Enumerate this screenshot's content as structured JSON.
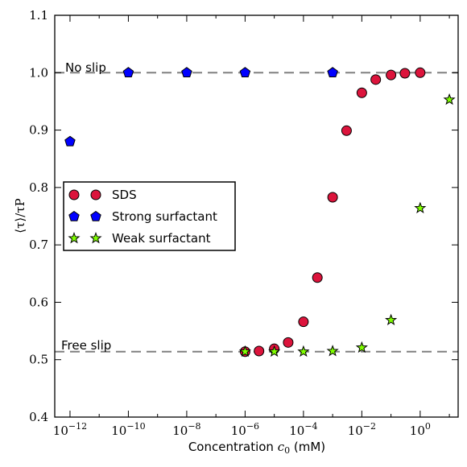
{
  "chart_data": {
    "type": "scatter",
    "xscale": "log",
    "xlim": [
      3e-13,
      20.0
    ],
    "ylim": [
      0.4,
      1.1
    ],
    "xticks": [
      1e-12,
      1e-10,
      1e-08,
      1e-06,
      0.0001,
      0.01,
      1.0
    ],
    "xtick_labels": [
      "10^-12",
      "10^-10",
      "10^-8",
      "10^-6",
      "10^-4",
      "10^-2",
      "10^0"
    ],
    "yticks": [
      0.4,
      0.5,
      0.6,
      0.7,
      0.8,
      0.9,
      1.0,
      1.1
    ],
    "ytick_labels": [
      "0.4",
      "0.5",
      "0.6",
      "0.7",
      "0.8",
      "0.9",
      "1.0",
      "1.1"
    ],
    "xlabel_prefix": "Concentration ",
    "xlabel_var": "c",
    "xlabel_sub": "0",
    "xlabel_suffix": " (mM)",
    "ylabel": "⟨τ⟩/τP",
    "grid": false,
    "legend_position": "center-left",
    "reference_lines": [
      {
        "label": "No slip",
        "y": 1.0,
        "color": "#808080"
      },
      {
        "label": "Free slip",
        "y": 0.514,
        "color": "#808080"
      }
    ],
    "series": [
      {
        "name": "SDS",
        "marker": "circle",
        "color": "#dc143c",
        "x": [
          1e-06,
          3e-06,
          1e-05,
          3e-05,
          0.0001,
          0.0003,
          0.001,
          0.003,
          0.01,
          0.03,
          0.1,
          0.3,
          1.0
        ],
        "y": [
          0.514,
          0.515,
          0.519,
          0.53,
          0.566,
          0.643,
          0.783,
          0.899,
          0.965,
          0.988,
          0.996,
          0.999,
          1.0
        ]
      },
      {
        "name": "Strong surfactant",
        "marker": "pentagon",
        "color": "#0000ff",
        "x": [
          1e-12,
          1e-10,
          1e-08,
          1e-06,
          0.001
        ],
        "y": [
          0.88,
          1.0,
          1.0,
          1.0,
          1.0
        ]
      },
      {
        "name": "Weak surfactant",
        "marker": "star",
        "color": "#7fff00",
        "x": [
          1e-06,
          1e-05,
          0.0001,
          0.001,
          0.01,
          0.1,
          1.0,
          10.0
        ],
        "y": [
          0.514,
          0.514,
          0.514,
          0.515,
          0.521,
          0.569,
          0.764,
          0.953
        ]
      }
    ]
  }
}
